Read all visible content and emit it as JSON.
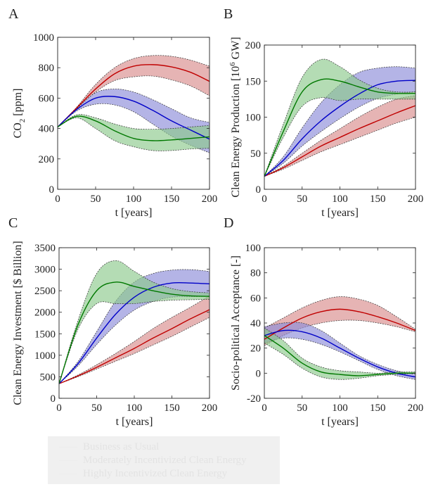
{
  "colors": {
    "bau": "#c00000",
    "moderate": "#0000c8",
    "high": "#007800",
    "bau_fill": "#d98c8c",
    "moderate_fill": "#8c8cd9",
    "high_fill": "#8cc98c"
  },
  "legend": {
    "items": [
      {
        "key": "bau",
        "label": "Business as Usual"
      },
      {
        "key": "moderate",
        "label": "Moderately Incentivized Clean Energy"
      },
      {
        "key": "high",
        "label": "Highly Incentivized Clean Energy"
      }
    ]
  },
  "chart_data": [
    {
      "panel": "A",
      "type": "line",
      "title": "",
      "xlabel": "t [years]",
      "ylabel": "CO2 [ppm]",
      "ylabel_main": "CO",
      "ylabel_sub": "2",
      "ylabel_rest": " [ppm]",
      "xlim": [
        0,
        200
      ],
      "ylim": [
        0,
        1000
      ],
      "xticks": [
        0,
        50,
        100,
        150,
        200
      ],
      "yticks": [
        0,
        200,
        400,
        600,
        800,
        1000
      ],
      "x": [
        0,
        25,
        50,
        75,
        100,
        125,
        150,
        175,
        200
      ],
      "series": [
        {
          "name": "Business as Usual",
          "key": "bau",
          "values": [
            410,
            535,
            660,
            760,
            810,
            820,
            805,
            770,
            710
          ],
          "lower": [
            410,
            530,
            640,
            715,
            740,
            745,
            720,
            680,
            615
          ],
          "upper": [
            410,
            540,
            690,
            800,
            860,
            880,
            875,
            850,
            810
          ]
        },
        {
          "name": "Moderately Incentivized Clean Energy",
          "key": "moderate",
          "values": [
            410,
            525,
            600,
            610,
            580,
            520,
            450,
            390,
            330
          ],
          "lower": [
            410,
            515,
            560,
            555,
            510,
            430,
            350,
            290,
            240
          ],
          "upper": [
            410,
            530,
            635,
            660,
            640,
            590,
            530,
            470,
            440
          ]
        },
        {
          "name": "Highly Incentivized Clean Energy",
          "key": "high",
          "values": [
            410,
            480,
            450,
            385,
            335,
            320,
            325,
            335,
            345
          ],
          "lower": [
            410,
            470,
            400,
            320,
            280,
            255,
            255,
            265,
            270
          ],
          "upper": [
            410,
            490,
            470,
            430,
            400,
            395,
            400,
            410,
            420
          ]
        }
      ]
    },
    {
      "panel": "B",
      "type": "line",
      "title": "",
      "xlabel": "t [years]",
      "ylabel": "Clean Energy Production [10^6 GW]",
      "ylabel_main": "Clean Energy Production [10",
      "ylabel_sup": "6",
      "ylabel_rest": " GW]",
      "xlim": [
        0,
        200
      ],
      "ylim": [
        0,
        200
      ],
      "xticks": [
        0,
        50,
        100,
        150,
        200
      ],
      "yticks": [
        0,
        50,
        100,
        150,
        200
      ],
      "x": [
        0,
        25,
        50,
        75,
        100,
        125,
        150,
        175,
        200
      ],
      "series": [
        {
          "name": "Business as Usual",
          "key": "bau",
          "values": [
            18,
            30,
            45,
            60,
            72,
            84,
            95,
            106,
            116
          ],
          "lower": [
            18,
            28,
            40,
            52,
            62,
            72,
            82,
            92,
            100
          ],
          "upper": [
            18,
            32,
            50,
            68,
            84,
            100,
            114,
            125,
            130
          ]
        },
        {
          "name": "Moderately Incentivized Clean Energy",
          "key": "moderate",
          "values": [
            18,
            40,
            70,
            95,
            115,
            132,
            145,
            150,
            151
          ],
          "lower": [
            18,
            36,
            60,
            80,
            98,
            114,
            126,
            132,
            135
          ],
          "upper": [
            18,
            45,
            85,
            120,
            145,
            162,
            168,
            170,
            168
          ]
        },
        {
          "name": "Highly Incentivized Clean Energy",
          "key": "high",
          "values": [
            18,
            80,
            135,
            152,
            150,
            142,
            135,
            133,
            133
          ],
          "lower": [
            18,
            72,
            115,
            127,
            123,
            125,
            125,
            125,
            125
          ],
          "upper": [
            18,
            90,
            155,
            180,
            170,
            152,
            140,
            135,
            135
          ]
        }
      ]
    },
    {
      "panel": "C",
      "type": "line",
      "title": "",
      "xlabel": "t [years]",
      "ylabel": "Clean Energy Investment [$ Billion]",
      "ylabel_main": "Clean Energy Investment [$ Billion]",
      "xlim": [
        0,
        200
      ],
      "ylim": [
        0,
        3500
      ],
      "xticks": [
        0,
        50,
        100,
        150,
        200
      ],
      "yticks": [
        0,
        500,
        1000,
        1500,
        2000,
        2500,
        3000,
        3500
      ],
      "x": [
        0,
        25,
        50,
        75,
        100,
        125,
        150,
        175,
        200
      ],
      "series": [
        {
          "name": "Business as Usual",
          "key": "bau",
          "values": [
            340,
            520,
            720,
            940,
            1160,
            1400,
            1620,
            1850,
            2060
          ],
          "lower": [
            340,
            500,
            680,
            860,
            1040,
            1240,
            1440,
            1660,
            1880
          ],
          "upper": [
            340,
            540,
            780,
            1040,
            1320,
            1620,
            1880,
            2120,
            2380
          ]
        },
        {
          "name": "Moderately Incentivized Clean Energy",
          "key": "moderate",
          "values": [
            340,
            800,
            1400,
            1950,
            2350,
            2580,
            2680,
            2680,
            2660
          ],
          "lower": [
            340,
            750,
            1250,
            1700,
            2050,
            2250,
            2350,
            2360,
            2370
          ],
          "upper": [
            340,
            850,
            1550,
            2250,
            2700,
            2900,
            2980,
            2990,
            2950
          ]
        },
        {
          "name": "Highly Incentivized Clean Energy",
          "key": "high",
          "values": [
            340,
            1700,
            2500,
            2700,
            2600,
            2500,
            2420,
            2380,
            2370
          ],
          "lower": [
            340,
            1600,
            2200,
            2200,
            2200,
            2250,
            2280,
            2290,
            2300
          ],
          "upper": [
            340,
            1800,
            2900,
            3200,
            2950,
            2700,
            2550,
            2480,
            2450
          ]
        }
      ]
    },
    {
      "panel": "D",
      "type": "line",
      "title": "",
      "xlabel": "t [years]",
      "ylabel": "Socio-political Acceptance [-]",
      "ylabel_main": "Socio-political Acceptance [-]",
      "xlim": [
        0,
        200
      ],
      "ylim": [
        -20,
        100
      ],
      "xticks": [
        0,
        50,
        100,
        150,
        200
      ],
      "yticks": [
        -20,
        0,
        20,
        40,
        60,
        80,
        100
      ],
      "x": [
        0,
        25,
        50,
        75,
        100,
        125,
        150,
        175,
        200
      ],
      "series": [
        {
          "name": "Business as Usual",
          "key": "bau",
          "values": [
            27,
            36,
            44,
            49,
            51,
            49,
            45,
            40,
            34
          ],
          "lower": [
            22,
            30,
            36,
            40,
            42,
            42,
            40,
            37,
            33
          ],
          "upper": [
            36,
            44,
            52,
            58,
            61,
            59,
            54,
            45,
            35
          ]
        },
        {
          "name": "Moderately Incentivized Clean Energy",
          "key": "moderate",
          "values": [
            30,
            34,
            33,
            28,
            20,
            12,
            5,
            0,
            -3
          ],
          "lower": [
            24,
            28,
            27,
            23,
            17,
            10,
            3,
            -2,
            -5
          ],
          "upper": [
            37,
            40,
            40,
            34,
            24,
            14,
            7,
            2,
            -1
          ]
        },
        {
          "name": "Highly Incentivized Clean Energy",
          "key": "high",
          "values": [
            30,
            20,
            8,
            1,
            -1,
            -2,
            -1,
            0,
            0
          ],
          "lower": [
            24,
            15,
            4,
            -3,
            -5,
            -4,
            -2,
            -1,
            0
          ],
          "upper": [
            36,
            26,
            12,
            5,
            2,
            1,
            0,
            1,
            1
          ]
        }
      ]
    }
  ]
}
